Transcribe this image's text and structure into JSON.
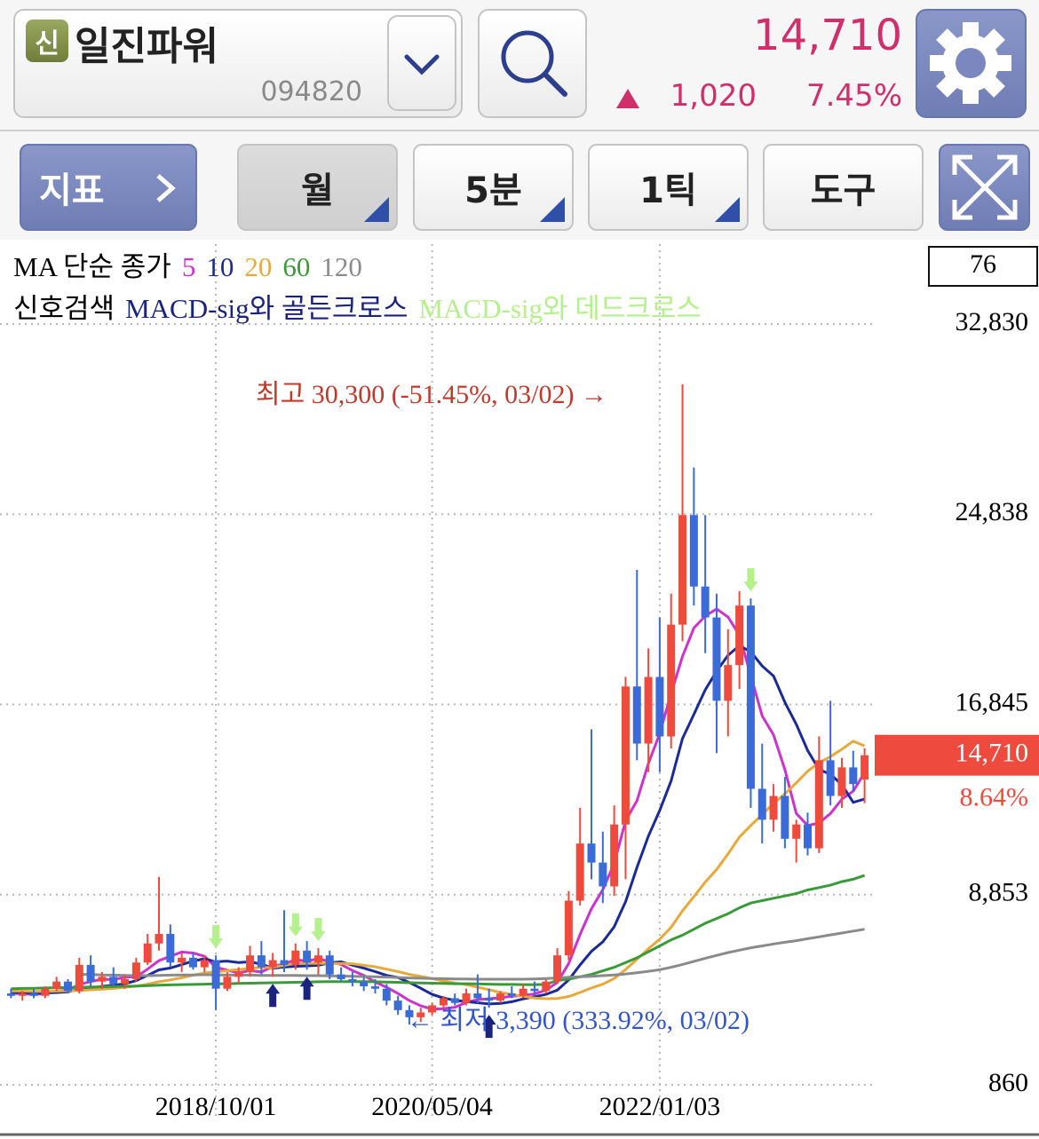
{
  "header": {
    "badge": "신",
    "name": "일진파워",
    "code": "094820",
    "price": "14,710",
    "change": "1,020",
    "change_pct": "7.45%"
  },
  "toolbar": {
    "indicator": "지표",
    "period": "월",
    "minute": "5분",
    "tick": "1틱",
    "tools": "도구"
  },
  "chart_data": {
    "type": "candlestick",
    "categories": [
      null,
      null,
      null,
      null,
      null,
      null,
      null,
      null,
      null,
      null,
      null,
      null,
      null,
      null,
      null,
      null,
      null,
      null,
      "2018/10/01",
      null,
      null,
      null,
      null,
      null,
      null,
      null,
      null,
      null,
      null,
      null,
      null,
      null,
      null,
      null,
      null,
      null,
      null,
      "2020/05/04",
      null,
      null,
      null,
      null,
      null,
      null,
      null,
      null,
      null,
      null,
      null,
      null,
      null,
      null,
      null,
      null,
      null,
      null,
      null,
      "2022/01/03",
      null,
      null,
      null,
      null,
      null,
      null,
      null,
      null,
      null,
      null,
      null,
      null,
      null,
      null,
      null,
      null,
      null,
      null
    ],
    "open": [
      4700,
      4600,
      4700,
      4600,
      4900,
      5200,
      4800,
      5900,
      5200,
      5400,
      5100,
      5300,
      6000,
      6800,
      7200,
      6000,
      6200,
      5800,
      6100,
      4900,
      5400,
      5600,
      6300,
      5800,
      6100,
      5900,
      6500,
      6000,
      6300,
      5500,
      5300,
      5200,
      5000,
      4900,
      4400,
      4000,
      3700,
      3900,
      4200,
      4500,
      4300,
      4700,
      4500,
      4400,
      4700,
      4600,
      4900,
      4800,
      5200,
      6300,
      8600,
      11000,
      10200,
      9200,
      11800,
      17600,
      15200,
      18000,
      15500,
      20200,
      24800,
      21800,
      20500,
      17000,
      18500,
      21000,
      13300,
      12000,
      13000,
      11200,
      11800,
      10800,
      14500,
      13000,
      14200,
      13690
    ],
    "high": [
      4900,
      4800,
      4900,
      5000,
      5400,
      5300,
      6200,
      6300,
      5600,
      5800,
      5500,
      6200,
      7200,
      9600,
      7600,
      6400,
      6400,
      6300,
      6300,
      5600,
      5800,
      6700,
      6900,
      6400,
      8200,
      6800,
      6900,
      6600,
      6500,
      5800,
      5600,
      5400,
      5300,
      5100,
      4600,
      4200,
      4100,
      4300,
      4600,
      4700,
      4900,
      5500,
      4900,
      4800,
      5000,
      5100,
      5200,
      5300,
      6600,
      9000,
      12500,
      15800,
      11500,
      12600,
      18000,
      22500,
      19200,
      20500,
      21500,
      30300,
      26800,
      24800,
      21500,
      20000,
      21600,
      21300,
      15200,
      13500,
      13800,
      12000,
      12300,
      15500,
      17000,
      14600,
      14900,
      15000
    ],
    "low": [
      4500,
      4400,
      4500,
      4500,
      4800,
      4700,
      4700,
      5000,
      4900,
      5000,
      4900,
      5200,
      5900,
      6500,
      5800,
      5600,
      5700,
      5600,
      4000,
      4800,
      5100,
      5400,
      5500,
      5400,
      5600,
      5700,
      5700,
      5500,
      5300,
      5200,
      5000,
      4800,
      4700,
      4200,
      3800,
      3390,
      3500,
      3800,
      4100,
      4200,
      4200,
      4300,
      4100,
      4300,
      4500,
      4500,
      4600,
      4700,
      5100,
      6100,
      8400,
      9500,
      8500,
      8800,
      9500,
      14500,
      14000,
      14000,
      15000,
      19500,
      21000,
      19000,
      14800,
      15500,
      17500,
      12500,
      11000,
      11500,
      10800,
      10200,
      10500,
      10600,
      12600,
      12500,
      13200,
      12700
    ],
    "close": [
      4600,
      4700,
      4600,
      4900,
      5200,
      4800,
      5900,
      5200,
      5400,
      5100,
      5300,
      6000,
      6800,
      7200,
      6000,
      6200,
      5800,
      6100,
      4900,
      5400,
      5600,
      6300,
      5800,
      6100,
      5900,
      6500,
      6000,
      6300,
      5500,
      5300,
      5200,
      5000,
      4900,
      4400,
      4000,
      3700,
      3900,
      4200,
      4500,
      4300,
      4700,
      4500,
      4400,
      4700,
      4600,
      4900,
      4800,
      5200,
      6300,
      8600,
      11000,
      10200,
      9200,
      11800,
      17600,
      15200,
      18000,
      15500,
      20200,
      24800,
      21800,
      20500,
      17000,
      18500,
      21000,
      13300,
      12000,
      13000,
      11200,
      11800,
      10800,
      14500,
      13000,
      14200,
      13500,
      14710
    ],
    "up_color": "#ee4b3e",
    "down_color": "#3a6bd6",
    "ma_label": "MA 단순 종가",
    "series": [
      {
        "name": "5",
        "color": "#cc33cc",
        "values": [
          4700,
          4700,
          4650,
          4700,
          4800,
          4840,
          5080,
          5200,
          5300,
          5280,
          5380,
          5400,
          5720,
          6080,
          6260,
          6440,
          6400,
          6260,
          5800,
          5680,
          5560,
          5660,
          5600,
          5840,
          5940,
          6120,
          6060,
          6160,
          6040,
          5920,
          5660,
          5460,
          5180,
          4960,
          4700,
          4400,
          4180,
          4040,
          4060,
          4120,
          4320,
          4440,
          4480,
          4520,
          4580,
          4620,
          4680,
          4840,
          5160,
          5960,
          7180,
          8260,
          9060,
          10160,
          11960,
          12800,
          14360,
          15620,
          17300,
          18860,
          20060,
          20560,
          20860,
          20520,
          19760,
          18060,
          16360,
          15560,
          14100,
          12260,
          11760,
          11860,
          12260,
          12860,
          13200,
          13980
        ]
      },
      {
        "name": "10",
        "color": "#1a2a9a",
        "values": [
          4750,
          4740,
          4720,
          4720,
          4740,
          4770,
          4890,
          4920,
          5000,
          5040,
          5110,
          5240,
          5460,
          5690,
          5770,
          5910,
          6060,
          6160,
          6030,
          6060,
          6000,
          6030,
          5930,
          5760,
          5810,
          5840,
          5860,
          5880,
          5990,
          6030,
          5890,
          5760,
          5620,
          5460,
          5370,
          5160,
          4920,
          4660,
          4510,
          4410,
          4360,
          4310,
          4260,
          4280,
          4350,
          4470,
          4560,
          4660,
          4840,
          5270,
          5900,
          6470,
          6870,
          7500,
          8560,
          10000,
          11310,
          12390,
          13630,
          15410,
          16430,
          17460,
          18240,
          18910,
          19310,
          19060,
          18460,
          18040,
          16930,
          16010,
          14910,
          14110,
          13910,
          13480,
          12730,
          12870
        ]
      },
      {
        "name": "20",
        "color": "#e8a93a",
        "values": [
          4800,
          4800,
          4790,
          4790,
          4800,
          4810,
          4830,
          4850,
          4880,
          4910,
          4960,
          5010,
          5090,
          5190,
          5270,
          5360,
          5470,
          5560,
          5600,
          5660,
          5700,
          5760,
          5790,
          5800,
          5880,
          5960,
          5960,
          5970,
          5960,
          5960,
          5950,
          5880,
          5820,
          5720,
          5620,
          5500,
          5420,
          5320,
          5230,
          5140,
          5070,
          4960,
          4860,
          4740,
          4660,
          4580,
          4510,
          4480,
          4490,
          4570,
          4740,
          4930,
          5090,
          5330,
          5710,
          6140,
          6580,
          6980,
          7480,
          8170,
          8770,
          9380,
          9910,
          10560,
          11270,
          11760,
          12220,
          12680,
          13090,
          13550,
          14040,
          14400,
          14650,
          14960,
          15300,
          15100
        ]
      },
      {
        "name": "60",
        "color": "#3a9a3a",
        "values": [
          4900,
          4910,
          4920,
          4930,
          4940,
          4950,
          4960,
          4970,
          4980,
          4990,
          5000,
          5010,
          5030,
          5050,
          5060,
          5070,
          5080,
          5090,
          5100,
          5110,
          5120,
          5130,
          5140,
          5150,
          5160,
          5170,
          5180,
          5190,
          5200,
          5200,
          5200,
          5200,
          5190,
          5180,
          5170,
          5150,
          5140,
          5130,
          5120,
          5110,
          5110,
          5100,
          5090,
          5080,
          5080,
          5070,
          5070,
          5080,
          5250,
          5300,
          5400,
          5500,
          5650,
          5800,
          6000,
          6200,
          6450,
          6700,
          6950,
          7150,
          7400,
          7650,
          7850,
          8050,
          8300,
          8500,
          8600,
          8700,
          8800,
          8900,
          9050,
          9150,
          9250,
          9400,
          9500,
          9660
        ]
      },
      {
        "name": "120",
        "color": "#8a8a8a",
        "values": [
          null,
          null,
          null,
          null,
          null,
          null,
          5500,
          5500,
          5480,
          5470,
          5460,
          5450,
          5450,
          5460,
          5470,
          5480,
          5480,
          5490,
          5480,
          5480,
          5470,
          5470,
          5460,
          5460,
          5460,
          5460,
          5450,
          5450,
          5440,
          5430,
          5420,
          5410,
          5400,
          5390,
          5370,
          5350,
          5340,
          5330,
          5320,
          5310,
          5310,
          5300,
          5300,
          5300,
          5300,
          5300,
          5310,
          5330,
          5350,
          5380,
          5400,
          5420,
          5450,
          5480,
          5520,
          5570,
          5630,
          5700,
          5800,
          5920,
          6050,
          6180,
          6300,
          6420,
          6520,
          6620,
          6700,
          6780,
          6850,
          6920,
          7000,
          7080,
          7160,
          7240,
          7320,
          7400
        ]
      }
    ],
    "signal_label": "신호검색",
    "signals": [
      {
        "name": "MACD-sig와 골든크로스",
        "color": "#1a237e",
        "direction": "up",
        "indices": [
          23,
          26,
          42
        ]
      },
      {
        "name": "MACD-sig와 데드크로스",
        "color": "#b4f08c",
        "direction": "down",
        "indices": [
          18,
          25,
          27,
          65
        ]
      }
    ],
    "annotations": {
      "high": "최고 30,300 (-51.45%, 03/02) →",
      "low": "← 최저 3,390 (333.92%, 03/02)"
    },
    "count_box": "76",
    "last_price": {
      "value": 14710,
      "label": "14,710"
    },
    "last_change": "8.64%",
    "ylim": [
      860,
      32830
    ],
    "yticks": [
      {
        "value": 32830,
        "label": "32,830"
      },
      {
        "value": 24838,
        "label": "24,838"
      },
      {
        "value": 16845,
        "label": "16,845"
      },
      {
        "value": 8853,
        "label": "8,853"
      },
      860
    ],
    "grid": true
  }
}
